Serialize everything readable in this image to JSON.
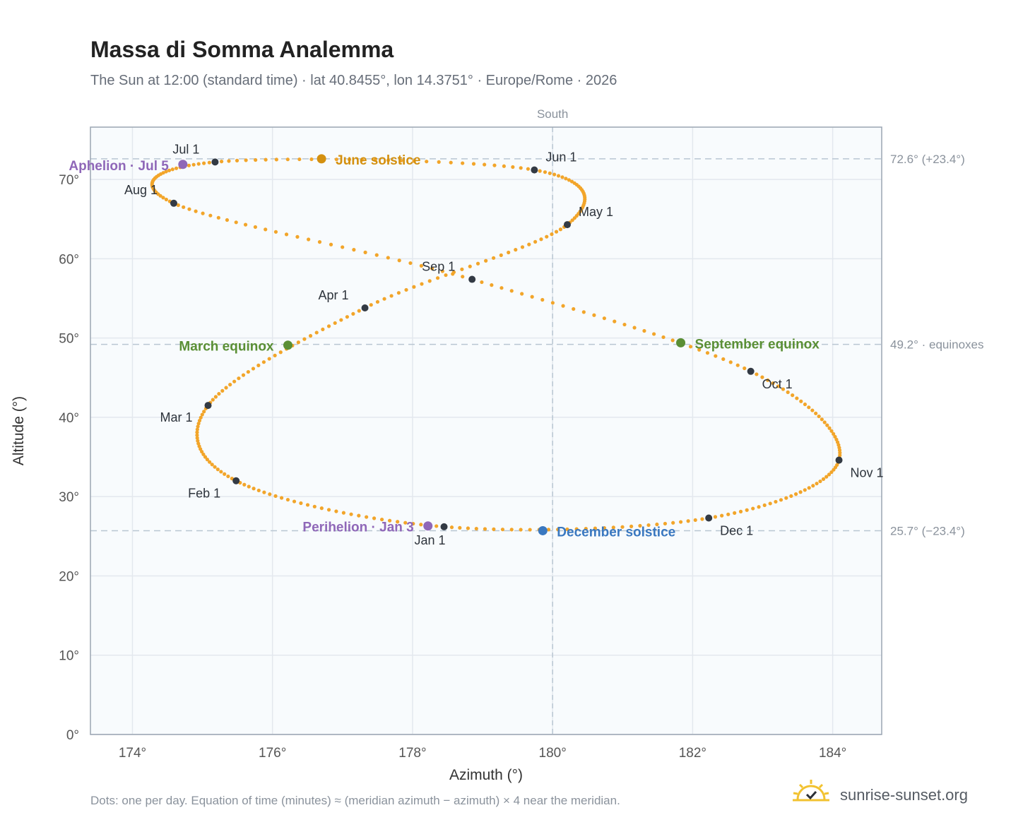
{
  "header": {
    "title": "Massa di Somma Analemma",
    "subtitle": "The Sun at 12:00 (standard time) · lat 40.8455°, lon 14.3751° · Europe/Rome · 2026"
  },
  "footer": {
    "note": "Dots: one per day. Equation of time (minutes) ≈ (meridian azimuth − azimuth) × 4 near the meridian.",
    "brand": "sunrise-sunset.org"
  },
  "colors": {
    "analemma": "#f2a52a",
    "month_dot": "#333a44",
    "solstice_june": "#d4900f",
    "solstice_december": "#3a78c0",
    "equinox": "#5a8f35",
    "apsis": "#8f67b8",
    "plot_bg": "#f8fbfd",
    "grid": "#e3e8ee",
    "reference_line": "#b9c6d2"
  },
  "chart_data": {
    "type": "scatter",
    "title": "Massa di Somma Analemma",
    "xlabel": "Azimuth (°)",
    "ylabel": "Altitude (°)",
    "xlim": [
      173.4,
      184.7
    ],
    "ylim": [
      0,
      76.6
    ],
    "grid": true,
    "x_ticks": [
      174,
      176,
      178,
      180,
      182,
      184
    ],
    "x_tick_labels": [
      "174°",
      "176°",
      "178°",
      "180°",
      "182°",
      "184°"
    ],
    "y_ticks": [
      0,
      10,
      20,
      30,
      40,
      50,
      60,
      70
    ],
    "y_tick_labels": [
      "0°",
      "10°",
      "20°",
      "30°",
      "40°",
      "50°",
      "60°",
      "70°"
    ],
    "meridian": {
      "azimuth": 180,
      "label": "South"
    },
    "reference_lines": [
      {
        "altitude": 72.6,
        "label": "72.6° (+23.4°)"
      },
      {
        "altitude": 49.2,
        "label": "49.2° · equinoxes"
      },
      {
        "altitude": 25.7,
        "label": "25.7° (−23.4°)"
      }
    ],
    "month_markers": [
      {
        "label": "Jan 1",
        "azimuth": 178.45,
        "altitude": 26.2
      },
      {
        "label": "Feb 1",
        "azimuth": 175.48,
        "altitude": 32.0
      },
      {
        "label": "Mar 1",
        "azimuth": 175.08,
        "altitude": 41.5
      },
      {
        "label": "Apr 1",
        "azimuth": 177.32,
        "altitude": 53.8
      },
      {
        "label": "May 1",
        "azimuth": 180.21,
        "altitude": 64.3
      },
      {
        "label": "Jun 1",
        "azimuth": 179.74,
        "altitude": 71.2
      },
      {
        "label": "Jul 1",
        "azimuth": 175.18,
        "altitude": 72.2
      },
      {
        "label": "Aug 1",
        "azimuth": 174.59,
        "altitude": 67.0
      },
      {
        "label": "Sep 1",
        "azimuth": 178.85,
        "altitude": 57.4
      },
      {
        "label": "Oct 1",
        "azimuth": 182.83,
        "altitude": 45.8
      },
      {
        "label": "Nov 1",
        "azimuth": 184.09,
        "altitude": 34.6
      },
      {
        "label": "Dec 1",
        "azimuth": 182.23,
        "altitude": 27.3
      }
    ],
    "events": [
      {
        "label": "June solstice",
        "azimuth": 176.7,
        "altitude": 72.6,
        "color": "#d4900f"
      },
      {
        "label": "December solstice",
        "azimuth": 179.86,
        "altitude": 25.7,
        "color": "#3a78c0"
      },
      {
        "label": "March equinox",
        "azimuth": 176.22,
        "altitude": 49.1,
        "color": "#5a8f35"
      },
      {
        "label": "September equinox",
        "azimuth": 181.83,
        "altitude": 49.4,
        "color": "#5a8f35"
      },
      {
        "label": "Aphelion · Jul 5",
        "azimuth": 174.72,
        "altitude": 71.9,
        "color": "#8f67b8"
      },
      {
        "label": "Perihelion · Jan 3",
        "azimuth": 178.22,
        "altitude": 26.3,
        "color": "#8f67b8"
      }
    ]
  }
}
